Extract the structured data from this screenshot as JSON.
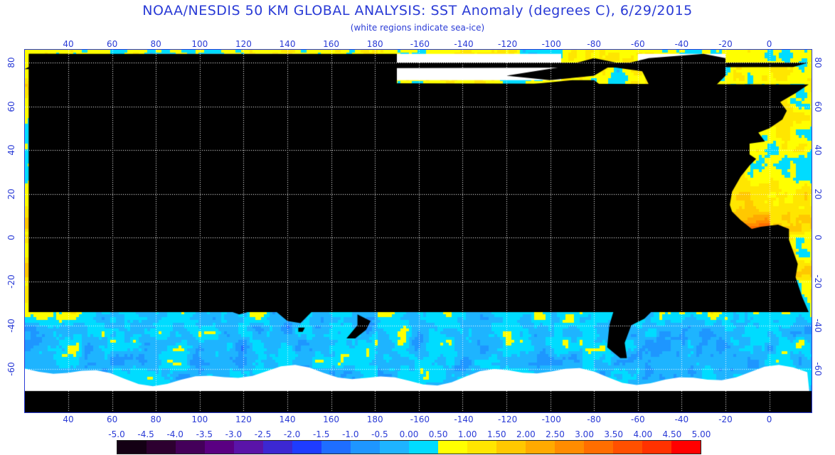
{
  "header": {
    "title": "NOAA/NESDIS 50 KM GLOBAL ANALYSIS: SST Anomaly (degrees C), 6/29/2015",
    "subtitle": "(white regions indicate sea-ice)"
  },
  "map": {
    "lon_ticks": [
      "40",
      "60",
      "80",
      "100",
      "120",
      "140",
      "160",
      "180",
      "-160",
      "-140",
      "-120",
      "-100",
      "-80",
      "-60",
      "-40",
      "-20",
      "0"
    ],
    "lat_ticks": [
      "80",
      "60",
      "40",
      "20",
      "0",
      "-20",
      "-40",
      "-60"
    ],
    "colors": {
      "land": "#000000",
      "ice": "#ffffff",
      "frame": "#2a3bd6",
      "grid": "#ffffff"
    }
  },
  "legend": {
    "labels": [
      "-5.0",
      "-4.5",
      "-4.0",
      "-3.5",
      "-3.0",
      "-2.5",
      "-2.0",
      "-1.5",
      "-1.0",
      "-0.5",
      "0.00",
      "0.50",
      "1.00",
      "1.50",
      "2.00",
      "2.50",
      "3.00",
      "3.50",
      "4.00",
      "4.50",
      "5.00"
    ],
    "colors": [
      "#140014",
      "#2d0030",
      "#44005a",
      "#5a0082",
      "#5a14a8",
      "#3c28d2",
      "#1e3cff",
      "#1e6eff",
      "#1e96ff",
      "#1eb4ff",
      "#00dcff",
      "#ffff00",
      "#ffe600",
      "#ffc800",
      "#ffaa00",
      "#ff8c00",
      "#ff6e00",
      "#ff5000",
      "#ff3200",
      "#ff0000"
    ]
  }
}
